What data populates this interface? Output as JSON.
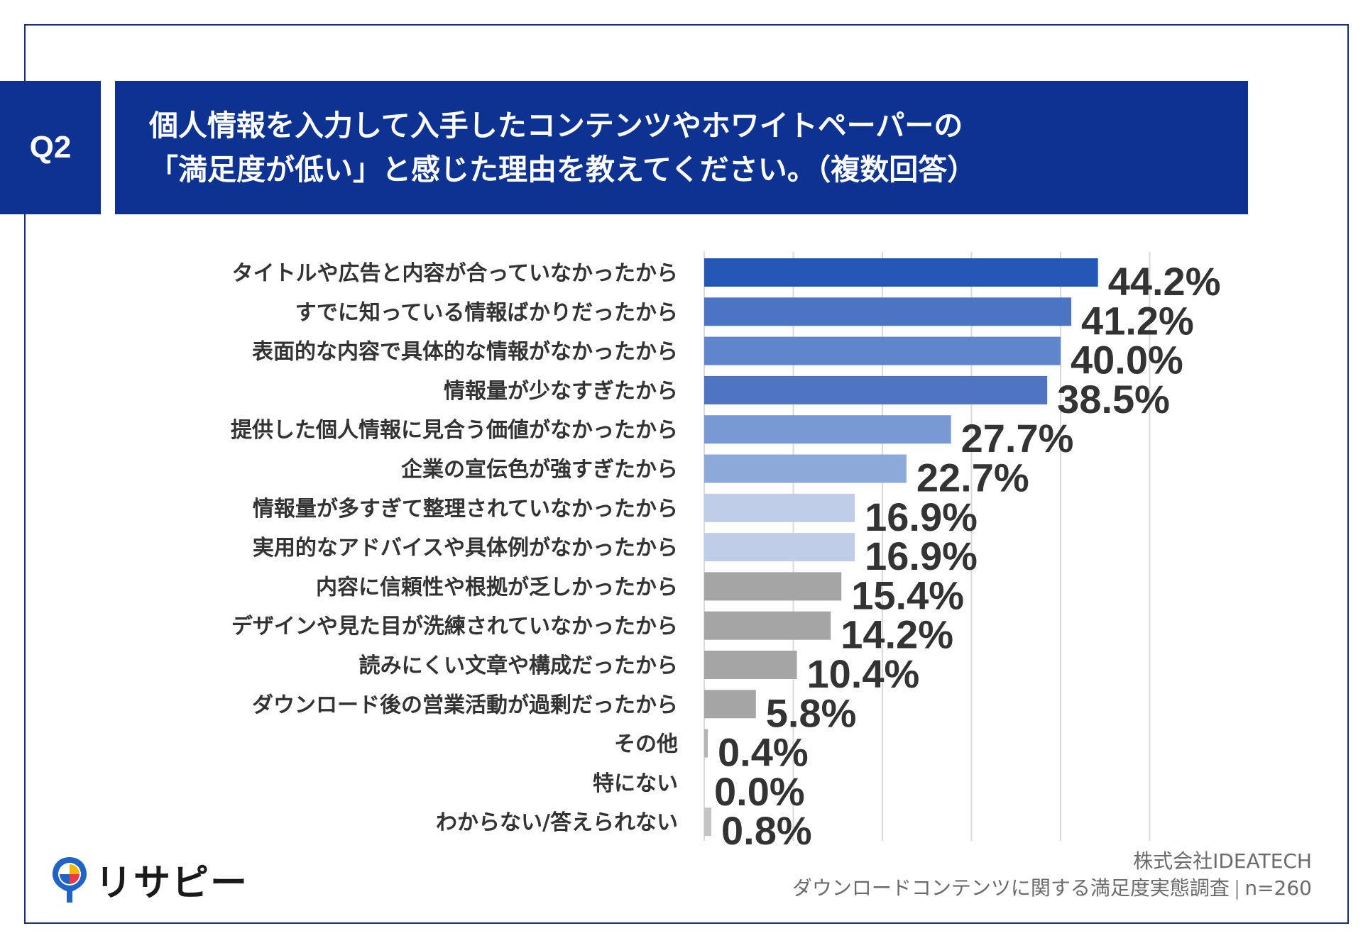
{
  "question": {
    "label": "Q2",
    "title_line1": "個人情報を入力して入手したコンテンツやホワイトペーパーの",
    "title_line2": "「満足度が低い」と感じた理由を教えてください。（複数回答）"
  },
  "chart_data": {
    "type": "bar",
    "orientation": "horizontal",
    "title": "個人情報を入力して入手したコンテンツやホワイトペーパーの「満足度が低い」と感じた理由を教えてください。（複数回答）",
    "categories": [
      "タイトルや広告と内容が合っていなかったから",
      "すでに知っている情報ばかりだったから",
      "表面的な内容で具体的な情報がなかったから",
      "情報量が少なすぎたから",
      "提供した個人情報に見合う価値がなかったから",
      "企業の宣伝色が強すぎたから",
      "情報量が多すぎて整理されていなかったから",
      "実用的なアドバイスや具体例がなかったから",
      "内容に信頼性や根拠が乏しかったから",
      "デザインや見た目が洗練されていなかったから",
      "読みにくい文章や構成だったから",
      "ダウンロード後の営業活動が過剰だったから",
      "その他",
      "特にない",
      "わからない/答えられない"
    ],
    "values": [
      44.2,
      41.2,
      40.0,
      38.5,
      27.7,
      22.7,
      16.9,
      16.9,
      15.4,
      14.2,
      10.4,
      5.8,
      0.4,
      0.0,
      0.8
    ],
    "value_labels": [
      "44.2%",
      "41.2%",
      "40.0%",
      "38.5%",
      "27.7%",
      "22.7%",
      "16.9%",
      "16.9%",
      "15.4%",
      "14.2%",
      "10.4%",
      "5.8%",
      "0.4%",
      "0.0%",
      "0.8%"
    ],
    "colors": [
      "#2457b6",
      "#4b74c5",
      "#5f86cc",
      "#4f74c2",
      "#7899d4",
      "#8ca9da",
      "#bfcde9",
      "#bfcde9",
      "#a5a5a5",
      "#a5a5a5",
      "#a5a5a5",
      "#a5a5a5",
      "#b5b5b5",
      "#b5b5b5",
      "#c4c4c4"
    ],
    "xlim": [
      0,
      50
    ],
    "x_gridlines": [
      10,
      20,
      30,
      40,
      50
    ],
    "grid": true,
    "legend": "none"
  },
  "brand": {
    "logo_text": "リサピー"
  },
  "source": {
    "company": "株式会社IDEATECH",
    "survey": "ダウンロードコンテンツに関する満足度実態調査",
    "sample": "n=260"
  }
}
